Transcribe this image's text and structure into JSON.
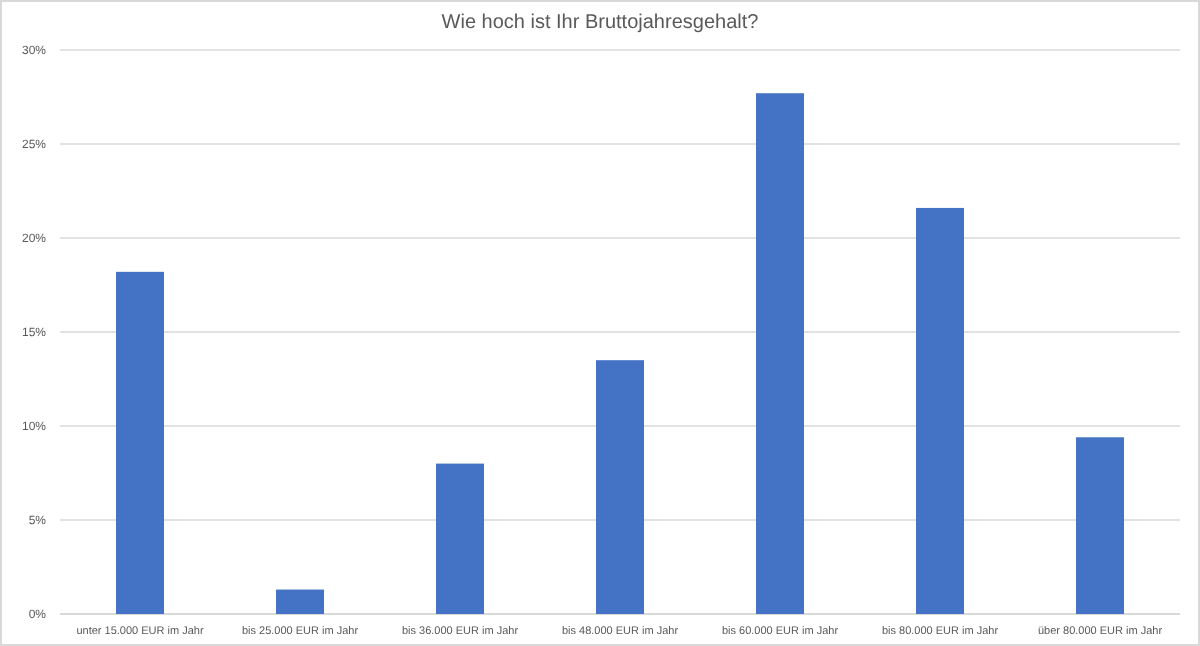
{
  "chart_data": {
    "type": "bar",
    "title": "Wie hoch ist Ihr Bruttojahresgehalt?",
    "categories": [
      "unter 15.000 EUR im Jahr",
      "bis 25.000 EUR im Jahr",
      "bis 36.000 EUR im Jahr",
      "bis 48.000 EUR im Jahr",
      "bis 60.000 EUR im Jahr",
      "bis 80.000 EUR im Jahr",
      "über 80.000 EUR im Jahr"
    ],
    "values": [
      18.2,
      1.3,
      8.0,
      13.5,
      27.7,
      21.6,
      9.4
    ],
    "color": "#4472c4",
    "ylim": [
      0,
      30
    ],
    "yticks": [
      {
        "value": 0,
        "label": "0%"
      },
      {
        "value": 5,
        "label": "5%"
      },
      {
        "value": 10,
        "label": "10%"
      },
      {
        "value": 15,
        "label": "15%"
      },
      {
        "value": 20,
        "label": "20%"
      },
      {
        "value": 25,
        "label": "25%"
      },
      {
        "value": 30,
        "label": "30%"
      }
    ],
    "grid": "y"
  }
}
